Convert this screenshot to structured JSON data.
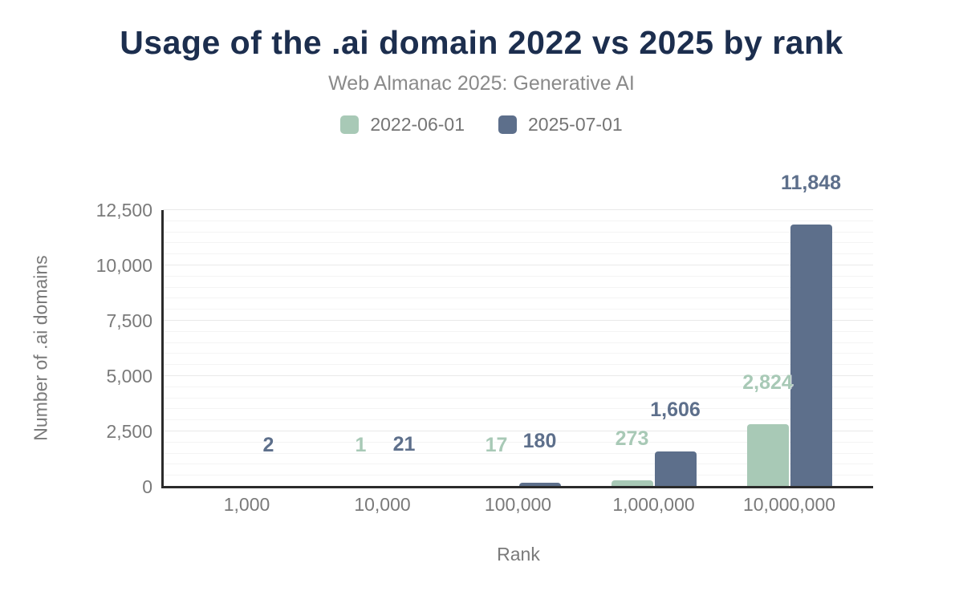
{
  "header": {
    "title": "Usage of the .ai domain 2022 vs 2025 by rank",
    "subtitle": "Web Almanac 2025: Generative AI"
  },
  "colors": {
    "title_text": "#1c2e4e",
    "subtitle_text": "#8a8a8a",
    "axis_text": "#7a7a7a",
    "legend_text": "#757575",
    "axis_line": "#2b2b2b",
    "grid_minor": "#f4f4f4",
    "grid_major": "#e9e9e9",
    "series_2022": "#a8c9b6",
    "series_2025": "#5d6f8b"
  },
  "chart_data": {
    "type": "bar",
    "title": "Usage of the .ai domain 2022 vs 2025 by rank",
    "subtitle": "Web Almanac 2025: Generative AI",
    "xlabel": "Rank",
    "ylabel": "Number of .ai domains",
    "categories": [
      "1,000",
      "10,000",
      "100,000",
      "1,000,000",
      "10,000,000"
    ],
    "series": [
      {
        "name": "2022-06-01",
        "color": "#a8c9b6",
        "values": [
          null,
          1,
          17,
          273,
          2824
        ],
        "labels": [
          "",
          "1",
          "17",
          "273",
          "2,824"
        ]
      },
      {
        "name": "2025-07-01",
        "color": "#5d6f8b",
        "values": [
          2,
          21,
          180,
          1606,
          11848
        ],
        "labels": [
          "2",
          "21",
          "180",
          "1,606",
          "11,848"
        ]
      }
    ],
    "ylim": [
      0,
      12500
    ],
    "yticks": [
      0,
      2500,
      5000,
      7500,
      10000,
      12500
    ],
    "ytick_labels": [
      "0",
      "2,500",
      "5,000",
      "7,500",
      "10,000",
      "12,500"
    ],
    "grid": {
      "minor_step": 500,
      "major_step": 2500,
      "visible": true
    },
    "legend_position": "top"
  }
}
